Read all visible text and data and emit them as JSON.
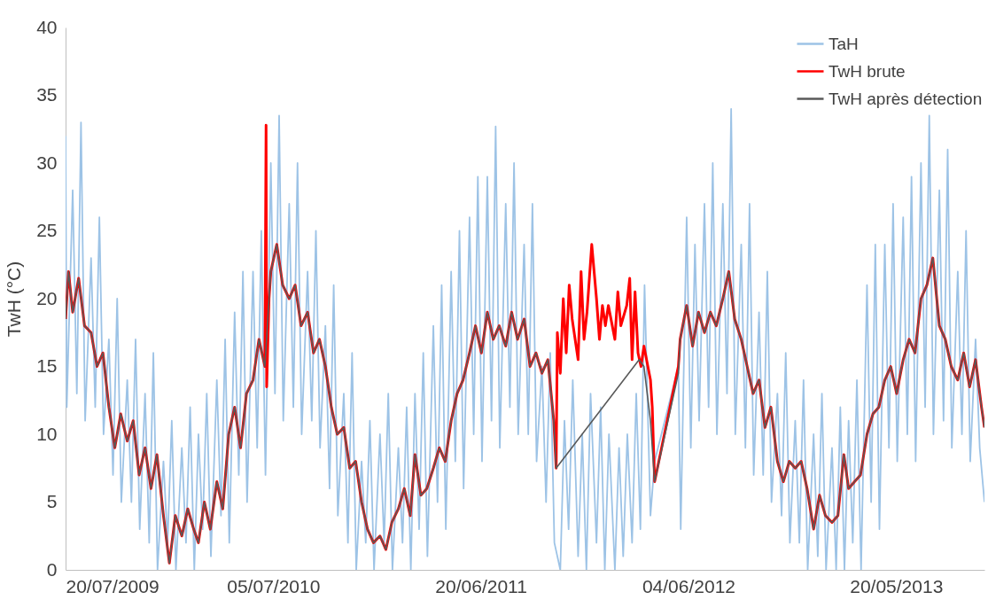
{
  "chart_data": {
    "type": "line",
    "ylabel": "TwH  (°C)",
    "legend": "top right",
    "grid": false,
    "line_style": "solid",
    "xlim": [
      "2009-07-20",
      "2013-10-16"
    ],
    "ylim": [
      0,
      40
    ],
    "yticks": [
      0,
      5,
      10,
      15,
      20,
      25,
      30,
      35,
      40
    ],
    "xticks": [
      {
        "value": "2009-07-20",
        "label": "20/07/2009"
      },
      {
        "value": "2010-07-05",
        "label": "05/07/2010"
      },
      {
        "value": "2011-06-20",
        "label": "20/06/2011"
      },
      {
        "value": "2012-06-04",
        "label": "04/06/2012"
      },
      {
        "value": "2013-05-20",
        "label": "20/05/2013"
      }
    ],
    "series": [
      {
        "name": "TaH",
        "color": "#9dc3e6",
        "x": [
          "2009-07-20",
          "2009-07-22",
          "2009-08-01",
          "2009-08-08",
          "2009-08-15",
          "2009-08-22",
          "2009-09-01",
          "2009-09-08",
          "2009-09-15",
          "2009-09-22",
          "2009-10-01",
          "2009-10-08",
          "2009-10-15",
          "2009-10-22",
          "2009-11-01",
          "2009-11-08",
          "2009-11-15",
          "2009-11-22",
          "2009-12-01",
          "2009-12-08",
          "2009-12-15",
          "2009-12-22",
          "2010-01-01",
          "2010-01-08",
          "2010-01-15",
          "2010-01-22",
          "2010-02-01",
          "2010-02-08",
          "2010-02-15",
          "2010-02-22",
          "2010-03-01",
          "2010-03-08",
          "2010-03-15",
          "2010-03-22",
          "2010-04-01",
          "2010-04-08",
          "2010-04-15",
          "2010-04-22",
          "2010-05-01",
          "2010-05-08",
          "2010-05-15",
          "2010-05-22",
          "2010-06-01",
          "2010-06-08",
          "2010-06-15",
          "2010-06-22",
          "2010-07-01",
          "2010-07-08",
          "2010-07-15",
          "2010-07-22",
          "2010-08-01",
          "2010-08-08",
          "2010-08-15",
          "2010-08-22",
          "2010-09-01",
          "2010-09-08",
          "2010-09-15",
          "2010-09-22",
          "2010-10-01",
          "2010-10-08",
          "2010-10-15",
          "2010-10-22",
          "2010-11-01",
          "2010-11-08",
          "2010-11-15",
          "2010-11-22",
          "2010-12-01",
          "2010-12-08",
          "2010-12-15",
          "2010-12-22",
          "2011-01-01",
          "2011-01-08",
          "2011-01-15",
          "2011-01-22",
          "2011-02-01",
          "2011-02-08",
          "2011-02-15",
          "2011-02-22",
          "2011-03-01",
          "2011-03-08",
          "2011-03-15",
          "2011-03-22",
          "2011-04-01",
          "2011-04-08",
          "2011-04-15",
          "2011-04-22",
          "2011-05-01",
          "2011-05-08",
          "2011-05-15",
          "2011-05-22",
          "2011-06-01",
          "2011-06-08",
          "2011-06-15",
          "2011-06-22",
          "2011-07-01",
          "2011-07-08",
          "2011-07-15",
          "2011-07-22",
          "2011-08-01",
          "2011-08-08",
          "2011-08-15",
          "2011-08-22",
          "2011-09-01",
          "2011-09-08",
          "2011-09-15",
          "2011-09-22",
          "2011-10-01",
          "2011-10-08",
          "2011-10-15",
          "2011-10-22",
          "2011-11-01",
          "2011-11-08",
          "2011-11-15",
          "2011-11-22",
          "2011-12-01",
          "2011-12-08",
          "2011-12-15",
          "2011-12-22",
          "2012-01-01",
          "2012-01-08",
          "2012-01-15",
          "2012-01-22",
          "2012-02-01",
          "2012-02-08",
          "2012-02-15",
          "2012-02-22",
          "2012-03-01",
          "2012-03-08",
          "2012-03-15",
          "2012-03-22",
          "2012-04-01",
          "2012-04-08",
          "2012-05-18",
          "2012-05-22",
          "2012-06-01",
          "2012-06-08",
          "2012-06-15",
          "2012-06-22",
          "2012-07-01",
          "2012-07-08",
          "2012-07-15",
          "2012-07-22",
          "2012-08-01",
          "2012-08-08",
          "2012-08-15",
          "2012-08-22",
          "2012-09-01",
          "2012-09-08",
          "2012-09-15",
          "2012-09-22",
          "2012-10-01",
          "2012-10-08",
          "2012-10-15",
          "2012-10-22",
          "2012-11-01",
          "2012-11-08",
          "2012-11-15",
          "2012-11-22",
          "2012-12-01",
          "2012-12-08",
          "2012-12-15",
          "2012-12-22",
          "2013-01-01",
          "2013-01-08",
          "2013-01-15",
          "2013-01-22",
          "2013-02-01",
          "2013-02-08",
          "2013-02-15",
          "2013-02-22",
          "2013-03-01",
          "2013-03-08",
          "2013-03-15",
          "2013-03-22",
          "2013-04-01",
          "2013-04-08",
          "2013-04-15",
          "2013-04-22",
          "2013-05-01",
          "2013-05-08",
          "2013-05-15",
          "2013-05-22",
          "2013-06-01",
          "2013-06-08",
          "2013-06-15",
          "2013-06-22",
          "2013-07-01",
          "2013-07-08",
          "2013-07-15",
          "2013-07-22",
          "2013-08-01",
          "2013-08-08",
          "2013-08-15",
          "2013-08-22",
          "2013-09-01",
          "2013-09-08",
          "2013-09-15",
          "2013-09-22",
          "2013-10-01",
          "2013-10-08",
          "2013-10-16"
        ],
        "values": [
          32,
          12,
          28,
          13,
          33,
          11,
          23,
          12,
          26,
          10,
          17,
          7,
          20,
          5,
          14,
          5,
          17,
          3,
          13,
          2,
          16,
          0,
          8,
          2,
          11,
          0,
          9,
          2,
          12,
          0,
          10,
          3,
          13,
          1,
          14,
          4,
          17,
          2,
          19,
          7,
          22,
          5,
          22,
          9,
          25,
          7,
          30,
          13,
          33.5,
          11,
          27,
          12,
          30,
          10,
          22,
          11,
          25,
          9,
          18,
          6,
          21,
          4,
          13,
          2,
          16,
          0,
          8,
          2,
          11,
          0,
          10,
          2,
          13,
          0,
          9,
          2,
          12,
          0,
          13,
          3,
          16,
          1,
          18,
          5,
          21,
          3,
          22,
          8,
          25,
          6,
          26,
          10,
          29,
          8,
          29,
          11,
          32.7,
          9,
          27,
          12,
          30,
          10,
          24,
          10,
          27,
          8,
          15,
          5,
          16,
          2,
          0,
          11,
          3,
          14,
          1,
          10,
          0,
          13,
          2,
          12,
          0,
          10,
          0,
          9,
          1,
          10,
          2,
          13,
          3,
          21,
          4,
          8,
          15,
          3,
          26,
          9,
          24,
          11,
          27,
          12,
          30,
          10,
          27,
          13,
          34,
          10,
          24,
          9,
          27,
          7,
          19,
          7,
          22,
          5,
          13,
          4,
          16,
          2,
          11,
          2,
          14,
          0,
          10,
          1,
          13,
          0,
          9,
          0,
          12,
          0,
          11,
          2,
          14,
          0,
          21,
          5,
          24,
          3,
          24,
          9,
          27,
          8,
          26,
          10,
          29,
          8,
          30,
          12,
          33.5,
          10,
          28,
          11,
          31,
          9,
          22,
          10,
          25,
          8,
          17,
          9,
          5
        ]
      },
      {
        "name": "TwH brute",
        "color": "#ff0000",
        "x": [
          "2009-07-20",
          "2009-07-25",
          "2009-08-01",
          "2009-08-11",
          "2009-08-21",
          "2009-09-01",
          "2009-09-11",
          "2009-09-21",
          "2009-10-01",
          "2009-10-11",
          "2009-10-21",
          "2009-11-01",
          "2009-11-11",
          "2009-11-21",
          "2009-12-01",
          "2009-12-11",
          "2009-12-21",
          "2010-01-01",
          "2010-01-11",
          "2010-01-21",
          "2010-02-01",
          "2010-02-11",
          "2010-02-21",
          "2010-03-01",
          "2010-03-11",
          "2010-03-21",
          "2010-04-01",
          "2010-04-11",
          "2010-04-21",
          "2010-05-01",
          "2010-05-11",
          "2010-05-21",
          "2010-06-01",
          "2010-06-11",
          "2010-06-21",
          "2010-06-23",
          "2010-06-24",
          "2010-06-28",
          "2010-07-01",
          "2010-07-11",
          "2010-07-21",
          "2010-08-01",
          "2010-08-11",
          "2010-08-21",
          "2010-09-01",
          "2010-09-11",
          "2010-09-21",
          "2010-10-01",
          "2010-10-11",
          "2010-10-21",
          "2010-11-01",
          "2010-11-11",
          "2010-11-21",
          "2010-12-01",
          "2010-12-11",
          "2010-12-21",
          "2011-01-01",
          "2011-01-11",
          "2011-01-21",
          "2011-02-01",
          "2011-02-11",
          "2011-02-21",
          "2011-03-01",
          "2011-03-11",
          "2011-03-21",
          "2011-04-01",
          "2011-04-11",
          "2011-04-21",
          "2011-05-01",
          "2011-05-11",
          "2011-05-21",
          "2011-06-01",
          "2011-06-11",
          "2011-06-21",
          "2011-07-01",
          "2011-07-11",
          "2011-07-21",
          "2011-08-01",
          "2011-08-11",
          "2011-08-21",
          "2011-09-01",
          "2011-09-11",
          "2011-09-21",
          "2011-10-01",
          "2011-10-11",
          "2011-10-21",
          "2011-10-25",
          "2011-10-27",
          "2011-11-01",
          "2011-11-06",
          "2011-11-11",
          "2011-11-16",
          "2011-11-21",
          "2011-12-01",
          "2011-12-06",
          "2011-12-11",
          "2011-12-16",
          "2011-12-24",
          "2012-01-01",
          "2012-01-06",
          "2012-01-11",
          "2012-01-16",
          "2012-01-21",
          "2012-02-01",
          "2012-02-06",
          "2012-02-11",
          "2012-02-21",
          "2012-02-26",
          "2012-03-01",
          "2012-03-06",
          "2012-03-11",
          "2012-03-16",
          "2012-03-21",
          "2012-04-01",
          "2012-04-04",
          "2012-04-08",
          "2012-05-18",
          "2012-05-21",
          "2012-06-01",
          "2012-06-11",
          "2012-06-21",
          "2012-07-01",
          "2012-07-11",
          "2012-07-21",
          "2012-08-01",
          "2012-08-11",
          "2012-08-21",
          "2012-09-01",
          "2012-09-11",
          "2012-09-21",
          "2012-10-01",
          "2012-10-11",
          "2012-10-21",
          "2012-11-01",
          "2012-11-11",
          "2012-11-21",
          "2012-12-01",
          "2012-12-11",
          "2012-12-21",
          "2013-01-01",
          "2013-01-11",
          "2013-01-21",
          "2013-02-01",
          "2013-02-11",
          "2013-02-21",
          "2013-03-01",
          "2013-03-11",
          "2013-03-21",
          "2013-04-01",
          "2013-04-11",
          "2013-04-21",
          "2013-05-01",
          "2013-05-11",
          "2013-05-21",
          "2013-06-01",
          "2013-06-11",
          "2013-06-21",
          "2013-07-01",
          "2013-07-11",
          "2013-07-21",
          "2013-08-01",
          "2013-08-11",
          "2013-08-21",
          "2013-09-01",
          "2013-09-11",
          "2013-09-21",
          "2013-10-01",
          "2013-10-11",
          "2013-10-16"
        ],
        "values": [
          18.5,
          22,
          19,
          21.5,
          18,
          17.5,
          15,
          16,
          12,
          9,
          11.5,
          9.5,
          11,
          7,
          9,
          6,
          8.5,
          4,
          0.5,
          4,
          2.5,
          4.5,
          3,
          2,
          5,
          3,
          6.5,
          4.5,
          10,
          12,
          9,
          13,
          14,
          17,
          15,
          32.8,
          13.5,
          20,
          22,
          24,
          21,
          20,
          21,
          18,
          19,
          16,
          17,
          15,
          12,
          10,
          10.5,
          7.5,
          8,
          5,
          3,
          2,
          2.5,
          1.5,
          3.5,
          4.5,
          6,
          4,
          8.5,
          5.5,
          6,
          7.5,
          9,
          8,
          11,
          13,
          14,
          16,
          18,
          16,
          19,
          17,
          18,
          16.5,
          19,
          17,
          18.5,
          15,
          16,
          14.5,
          15.5,
          11,
          7.5,
          17.5,
          14.5,
          20,
          16,
          21,
          18.5,
          15.5,
          22,
          17,
          19,
          24,
          20,
          17,
          19.5,
          18,
          19.5,
          17,
          20.5,
          18,
          19.5,
          21.5,
          15.5,
          20.5,
          16,
          15,
          16.5,
          14,
          12,
          6.5,
          15,
          17,
          19.5,
          16.5,
          19,
          17.5,
          19,
          18,
          20,
          22,
          18.5,
          17,
          15,
          13,
          14,
          10.5,
          12,
          8,
          6.5,
          8,
          7.5,
          8,
          6,
          3,
          5.5,
          4,
          3.5,
          4,
          8.5,
          6,
          6.5,
          7,
          10,
          11.5,
          12,
          14,
          15,
          13,
          15.5,
          17,
          16,
          20,
          21,
          23,
          18,
          17,
          15,
          14,
          16,
          13.5,
          15.5,
          12,
          10.5
        ]
      },
      {
        "name": "TwH après détection",
        "color": "#595959",
        "x": [
          "2009-07-20",
          "2009-07-25",
          "2009-08-01",
          "2009-08-11",
          "2009-08-21",
          "2009-09-01",
          "2009-09-11",
          "2009-09-21",
          "2009-10-01",
          "2009-10-11",
          "2009-10-21",
          "2009-11-01",
          "2009-11-11",
          "2009-11-21",
          "2009-12-01",
          "2009-12-11",
          "2009-12-21",
          "2010-01-01",
          "2010-01-11",
          "2010-01-21",
          "2010-02-01",
          "2010-02-11",
          "2010-02-21",
          "2010-03-01",
          "2010-03-11",
          "2010-03-21",
          "2010-04-01",
          "2010-04-11",
          "2010-04-21",
          "2010-05-01",
          "2010-05-11",
          "2010-05-21",
          "2010-06-01",
          "2010-06-11",
          "2010-06-21",
          "2010-06-28",
          "2010-07-01",
          "2010-07-11",
          "2010-07-21",
          "2010-08-01",
          "2010-08-11",
          "2010-08-21",
          "2010-09-01",
          "2010-09-11",
          "2010-09-21",
          "2010-10-01",
          "2010-10-11",
          "2010-10-21",
          "2010-11-01",
          "2010-11-11",
          "2010-11-21",
          "2010-12-01",
          "2010-12-11",
          "2010-12-21",
          "2011-01-01",
          "2011-01-11",
          "2011-01-21",
          "2011-02-01",
          "2011-02-11",
          "2011-02-21",
          "2011-03-01",
          "2011-03-11",
          "2011-03-21",
          "2011-04-01",
          "2011-04-11",
          "2011-04-21",
          "2011-05-01",
          "2011-05-11",
          "2011-05-21",
          "2011-06-01",
          "2011-06-11",
          "2011-06-21",
          "2011-07-01",
          "2011-07-11",
          "2011-07-21",
          "2011-08-01",
          "2011-08-11",
          "2011-08-21",
          "2011-09-01",
          "2011-09-11",
          "2011-09-21",
          "2011-10-01",
          "2011-10-11",
          "2011-10-21",
          "2011-10-25",
          "2012-03-13",
          "2012-03-21",
          "2012-04-01",
          "2012-04-08",
          "2012-05-18",
          "2012-05-21",
          "2012-06-01",
          "2012-06-11",
          "2012-06-21",
          "2012-07-01",
          "2012-07-11",
          "2012-07-21",
          "2012-08-01",
          "2012-08-11",
          "2012-08-21",
          "2012-09-01",
          "2012-09-11",
          "2012-09-21",
          "2012-10-01",
          "2012-10-11",
          "2012-10-21",
          "2012-11-01",
          "2012-11-11",
          "2012-11-21",
          "2012-12-01",
          "2012-12-11",
          "2012-12-21",
          "2013-01-01",
          "2013-01-11",
          "2013-01-21",
          "2013-02-01",
          "2013-02-11",
          "2013-02-21",
          "2013-03-01",
          "2013-03-11",
          "2013-03-21",
          "2013-04-01",
          "2013-04-11",
          "2013-04-21",
          "2013-05-01",
          "2013-05-11",
          "2013-05-21",
          "2013-06-01",
          "2013-06-11",
          "2013-06-21",
          "2013-07-01",
          "2013-07-11",
          "2013-07-21",
          "2013-08-01",
          "2013-08-11",
          "2013-08-21",
          "2013-09-01",
          "2013-09-11",
          "2013-09-21",
          "2013-10-01",
          "2013-10-11",
          "2013-10-16"
        ],
        "values": [
          18.5,
          22,
          19,
          21.5,
          18,
          17.5,
          15,
          16,
          12,
          9,
          11.5,
          9.5,
          11,
          7,
          9,
          6,
          8.5,
          4,
          0.5,
          4,
          2.5,
          4.5,
          3,
          2,
          5,
          3,
          6.5,
          4.5,
          10,
          12,
          9,
          13,
          14,
          17,
          15,
          20,
          22,
          24,
          21,
          20,
          21,
          18,
          19,
          16,
          17,
          15,
          12,
          10,
          10.5,
          7.5,
          8,
          5,
          3,
          2,
          2.5,
          1.5,
          3.5,
          4.5,
          6,
          4,
          8.5,
          5.5,
          6,
          7.5,
          9,
          8,
          11,
          13,
          14,
          16,
          18,
          16,
          19,
          17,
          18,
          16.5,
          19,
          17,
          18.5,
          15,
          16,
          14.5,
          15.5,
          11,
          7.5,
          15.5,
          15,
          11,
          6.5,
          14.5,
          17,
          19.5,
          16.5,
          19,
          17.5,
          19,
          18,
          20,
          22,
          18.5,
          17,
          15,
          13,
          14,
          10.5,
          12,
          8,
          6.5,
          8,
          7.5,
          8,
          6,
          3,
          5.5,
          4,
          3.5,
          4,
          8.5,
          6,
          6.5,
          7,
          10,
          11.5,
          12,
          14,
          15,
          13,
          15.5,
          17,
          16,
          20,
          21,
          23,
          18,
          17,
          15,
          14,
          16,
          13.5,
          15.5,
          12,
          10.5
        ]
      }
    ]
  }
}
